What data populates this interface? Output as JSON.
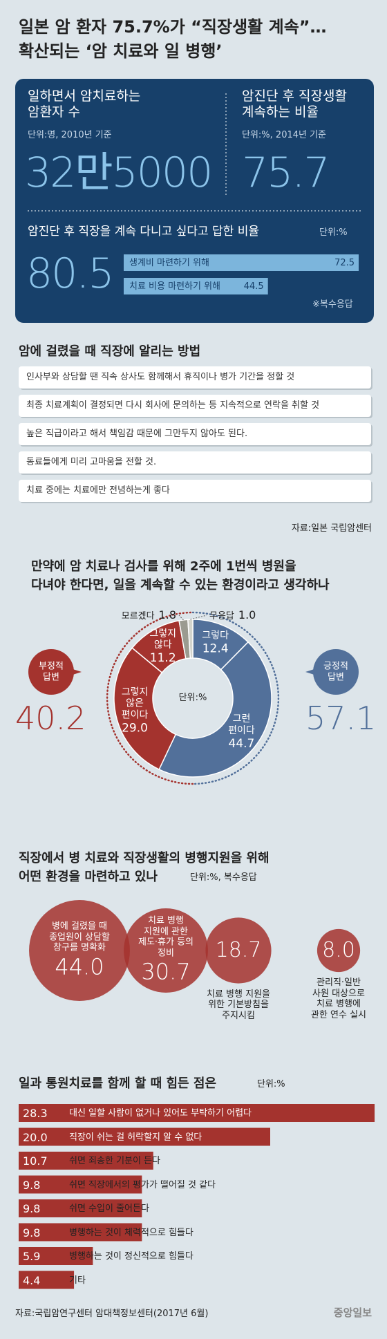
{
  "header": {
    "title": "일본 암 환자 75.7%가 “직장생활 계속”…\n확산되는 ‘암 치료와 일 병행’"
  },
  "key_figures": {
    "patients": {
      "label": "일하면서 암치료하는\n암환자 수",
      "unit": "단위:명, 2010년 기준",
      "value": "32만5000"
    },
    "continuing": {
      "label": "암진단 후 직장생활\n계속하는 비율",
      "unit": "단위:%, 2014년 기준",
      "value": 75.7
    }
  },
  "notice": {
    "title": "암에 걸렸을 때 직장에 알리는 방법",
    "items": [
      "인사부와 상담할 땐 직속 상사도 함께해서 휴직이나 병가 기간을 정할 것",
      "최종 치료계획이 결정되면 다시 회사에 문의하는 등 지속적으로 연락을 취할 것",
      "높은 직급이라고 해서 책임감 때문에 그만두지 않아도 된다.",
      "동료들에게 미리 고마움을 전할 것.",
      "치료 중에는 치료에만 전념하는게 좋다"
    ],
    "source": "자료:일본 국립암센터"
  },
  "chart_data": [
    {
      "type": "hbar",
      "title": "암진단 후 직장을 계속 다니고 싶다고 답한 비율",
      "unit": "단위:%",
      "total": 80.5,
      "categories": [
        "생계비 마련하기 위해",
        "치료 비용 마련하기 위해"
      ],
      "values": [
        72.5,
        44.5
      ],
      "color": "#7cb5dc",
      "note": "※복수응답"
    },
    {
      "type": "donut",
      "title": "만약에 암 치료나 검사를 위해 2주에 1번씩 병원을\n다녀야 한다면, 일을 계속할 수 있는 환경이라고 생각하나",
      "unit": "단위:%",
      "categories": [
        "그렇다",
        "그런\n편이다",
        "그렇지\n않은\n편이다",
        "그렇지\n않다",
        "모르겠다",
        "무응답"
      ],
      "values": [
        12.4,
        44.7,
        29,
        11.2,
        1.8,
        1
      ],
      "value_labels": [
        "12.4",
        "44.7",
        "29.0",
        "11.2",
        "1.8",
        "1.0"
      ],
      "colors": [
        "#52709a",
        "#52709a",
        "#a4332e",
        "#a4332e",
        "#9b9b90",
        "#d3d4cc"
      ],
      "groups": [
        {
          "name": "긍정적\n답변",
          "value": 57.1,
          "color": "#52709a"
        },
        {
          "name": "부정적\n답변",
          "value": 40.2,
          "color": "#a4332e"
        }
      ]
    },
    {
      "type": "bubble",
      "title": "직장에서 병 치료와 직장생활의 병행지원을 위해\n어떤 환경을 마련하고 있나",
      "unit": "단위:%, 복수응답",
      "categories": [
        "병에 걸렸을 때\n종업원이 상담할\n창구를 명확화",
        "치료 병행\n지원에 관한\n제도·휴가 등의\n정비",
        "치료 병행 지원을\n위한 기본방침을\n주지시킴",
        "관리직·일반\n사원 대상으로\n치료 병행에\n관한 연수 실시"
      ],
      "values": [
        44,
        30.7,
        18.7,
        8
      ],
      "value_labels": [
        "44.0",
        "30.7",
        "18.7",
        "8.0"
      ],
      "color": "#a4332e"
    },
    {
      "type": "bar",
      "title": "일과 통원치료를 함께 할 때 힘든 점은",
      "unit": "단위:%",
      "categories": [
        "대신 일할 사람이 없거나 있어도 부탁하기 어렵다",
        "직장이 쉬는 걸 허락할지 알 수 없다",
        "쉬면 죄송한 기분이 든다",
        "쉬면 직장에서의 평가가 떨어질 것 같다",
        "쉬면 수입이 줄어든다",
        "병행하는 것이 체력적으로 힘들다",
        "병행하는 것이 정신적으로 힘들다",
        "기타"
      ],
      "values": [
        28.3,
        20,
        10.7,
        9.8,
        9.8,
        9.8,
        5.9,
        4.4
      ],
      "value_labels": [
        "28.3",
        "20.0",
        "10.7",
        "9.8",
        "9.8",
        "9.8",
        "5.9",
        "4.4"
      ],
      "color": "#a4332e"
    }
  ],
  "footer": {
    "source": "자료:국립암연구센터 암대책정보센터(2017년 6월)",
    "logo": "중앙일보"
  }
}
